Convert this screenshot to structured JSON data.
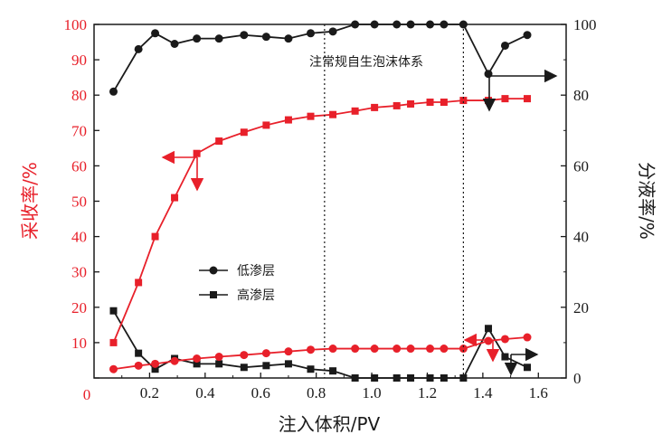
{
  "chart_data": {
    "type": "line",
    "xlabel": "注入体积/PV",
    "ylabel_left": "采收率/%",
    "ylabel_right": "分液率/%",
    "xlim": [
      0,
      1.7
    ],
    "ylim_left": [
      0,
      100
    ],
    "ylim_right": [
      0,
      100
    ],
    "x_ticks": [
      "0.2",
      "0.4",
      "0.6",
      "0.8",
      "1.0",
      "1.2",
      "1.4",
      "1.6"
    ],
    "x_tick_values": [
      0.2,
      0.4,
      0.6,
      0.8,
      1.0,
      1.2,
      1.4,
      1.6
    ],
    "y_left_ticks": [
      "0",
      "10",
      "20",
      "30",
      "40",
      "50",
      "60",
      "70",
      "80",
      "90",
      "100"
    ],
    "y_left_tick_values": [
      0,
      10,
      20,
      30,
      40,
      50,
      60,
      70,
      80,
      90,
      100
    ],
    "y_right_ticks": [
      "0",
      "20",
      "40",
      "60",
      "80",
      "100"
    ],
    "y_right_tick_values": [
      0,
      20,
      40,
      60,
      80,
      100
    ],
    "vlines": [
      0.83,
      1.33
    ],
    "annotation": "注常规自生泡沫体系",
    "legend": [
      "低渗层",
      "高渗层"
    ],
    "colors": {
      "recovery": "#e8202a",
      "fraction": "#1a1a1a"
    },
    "series": [
      {
        "name": "低渗层",
        "axis": "right",
        "kind": "fraction",
        "marker": "circle",
        "x": [
          0.07,
          0.16,
          0.22,
          0.29,
          0.37,
          0.45,
          0.54,
          0.62,
          0.7,
          0.78,
          0.86,
          0.94,
          1.01,
          1.09,
          1.14,
          1.21,
          1.26,
          1.33,
          1.42,
          1.48,
          1.56
        ],
        "y": [
          81,
          93,
          97.5,
          94.5,
          96,
          96,
          97,
          96.5,
          96,
          97.5,
          98,
          100,
          100,
          100,
          100,
          100,
          100,
          100,
          86,
          94,
          97
        ]
      },
      {
        "name": "高渗层",
        "axis": "right",
        "kind": "fraction",
        "marker": "square",
        "x": [
          0.07,
          0.16,
          0.22,
          0.29,
          0.37,
          0.45,
          0.54,
          0.62,
          0.7,
          0.78,
          0.86,
          0.94,
          1.01,
          1.09,
          1.14,
          1.21,
          1.26,
          1.33,
          1.42,
          1.48,
          1.56
        ],
        "y": [
          19,
          7,
          2.5,
          5.5,
          4,
          4,
          3,
          3.5,
          4,
          2.5,
          2,
          0,
          0,
          0,
          0,
          0,
          0,
          0,
          14,
          6,
          3
        ]
      },
      {
        "name": "",
        "axis": "left",
        "kind": "recovery",
        "marker": "square",
        "x": [
          0.07,
          0.16,
          0.22,
          0.29,
          0.37,
          0.45,
          0.54,
          0.62,
          0.7,
          0.78,
          0.86,
          0.94,
          1.01,
          1.09,
          1.14,
          1.21,
          1.26,
          1.33,
          1.42,
          1.48,
          1.56
        ],
        "y": [
          10,
          27,
          40,
          51,
          63.5,
          67,
          69.5,
          71.5,
          73,
          74,
          74.5,
          75.5,
          76.5,
          77,
          77.5,
          78,
          78,
          78.5,
          78.5,
          79,
          79
        ]
      },
      {
        "name": "",
        "axis": "left",
        "kind": "recovery",
        "marker": "circle",
        "x": [
          0.07,
          0.16,
          0.22,
          0.29,
          0.37,
          0.45,
          0.54,
          0.62,
          0.7,
          0.78,
          0.86,
          0.94,
          1.01,
          1.09,
          1.14,
          1.21,
          1.26,
          1.33,
          1.42,
          1.48,
          1.56
        ],
        "y": [
          2.5,
          3.5,
          4,
          4.8,
          5.5,
          6,
          6.5,
          7,
          7.5,
          8,
          8.3,
          8.3,
          8.3,
          8.3,
          8.3,
          8.3,
          8.3,
          8.3,
          10.5,
          11,
          11.5
        ]
      }
    ]
  }
}
